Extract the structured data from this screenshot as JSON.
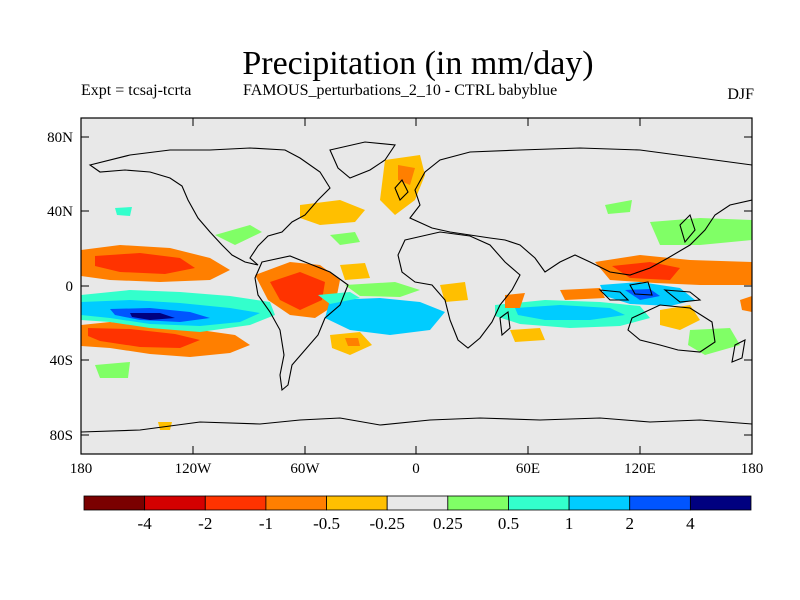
{
  "title": "Precipitation (in mm/day)",
  "subtitle_left": "Expt = tcsaj-tcrta",
  "subtitle_center": "FAMOUS_perturbations_2_10 - CTRL babyblue",
  "subtitle_right": "DJF",
  "axes": {
    "lat_labels": [
      "80N",
      "40N",
      "0",
      "40S",
      "80S"
    ],
    "lon_labels": [
      "180",
      "120W",
      "60W",
      "0",
      "60E",
      "120E",
      "180"
    ]
  },
  "colorbar": {
    "colors": [
      "#7a0000",
      "#d40000",
      "#ff3300",
      "#ff7f00",
      "#ffbf00",
      "#e8e8e8",
      "#80ff66",
      "#33ffcc",
      "#00ccff",
      "#0055ff",
      "#000080"
    ],
    "labels": [
      "-4",
      "-2",
      "-1",
      "-0.5",
      "-0.25",
      "0.25",
      "0.5",
      "1",
      "2",
      "4"
    ]
  },
  "chart_data": {
    "type": "heatmap",
    "title": "Precipitation (in mm/day)",
    "projection": "cylindrical-equidistant",
    "lon_range": [
      -180,
      180
    ],
    "lat_range": [
      -90,
      90
    ],
    "x_ticks": [
      "180",
      "120W",
      "60W",
      "0",
      "60E",
      "120E",
      "180"
    ],
    "y_ticks": [
      "80N",
      "40N",
      "0",
      "40S",
      "80S"
    ],
    "levels": [
      -4,
      -2,
      -1,
      -0.5,
      -0.25,
      0.25,
      0.5,
      1,
      2,
      4
    ],
    "units": "mm/day"
  }
}
